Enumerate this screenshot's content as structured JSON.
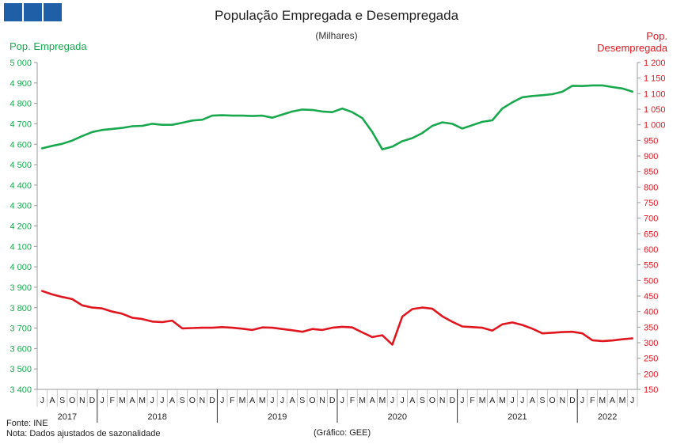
{
  "logo": {
    "squares": 3,
    "color": "#1f5fa8"
  },
  "chart_data": {
    "type": "line",
    "title": "População Empregada e Desempregada",
    "subtitle": "(Milhares)",
    "y_left_label": "Pop. Empregada",
    "y_right_label_line1": "Pop.",
    "y_right_label_line2": "Desempregada",
    "y_left": {
      "min": 3400,
      "max": 5000,
      "step": 100,
      "ticks": [
        "3 400",
        "3 500",
        "3 600",
        "3 700",
        "3 800",
        "3 900",
        "4 000",
        "4 100",
        "4 200",
        "4 300",
        "4 400",
        "4 500",
        "4 600",
        "4 700",
        "4 800",
        "4 900",
        "5 000"
      ]
    },
    "y_right": {
      "min": 150,
      "max": 1200,
      "step": 50,
      "ticks": [
        "150",
        "200",
        "250",
        "300",
        "350",
        "400",
        "450",
        "500",
        "550",
        "600",
        "650",
        "700",
        "750",
        "800",
        "850",
        "900",
        "950",
        "1 000",
        "1 050",
        "1 100",
        "1 150",
        "1 200"
      ]
    },
    "months": [
      "J",
      "A",
      "S",
      "O",
      "N",
      "D",
      "J",
      "F",
      "M",
      "A",
      "M",
      "J",
      "J",
      "A",
      "S",
      "O",
      "N",
      "D",
      "J",
      "F",
      "M",
      "A",
      "M",
      "J",
      "J",
      "A",
      "S",
      "O",
      "N",
      "D",
      "J",
      "F",
      "M",
      "A",
      "M",
      "J",
      "J",
      "A",
      "S",
      "O",
      "N",
      "D",
      "J",
      "F",
      "M",
      "A",
      "M",
      "J",
      "J",
      "A",
      "S",
      "O",
      "N",
      "D",
      "J",
      "F",
      "M",
      "A",
      "M",
      "J"
    ],
    "years": [
      {
        "label": "2017",
        "start": 0,
        "end": 5
      },
      {
        "label": "2018",
        "start": 6,
        "end": 17
      },
      {
        "label": "2019",
        "start": 18,
        "end": 29
      },
      {
        "label": "2020",
        "start": 30,
        "end": 41
      },
      {
        "label": "2021",
        "start": 42,
        "end": 53
      },
      {
        "label": "2022",
        "start": 54,
        "end": 59
      }
    ],
    "series": [
      {
        "name": "Pop. Empregada",
        "axis": "left",
        "color": "#1aa84f",
        "values": [
          4580,
          4592,
          4602,
          4618,
          4640,
          4660,
          4670,
          4675,
          4680,
          4688,
          4690,
          4700,
          4695,
          4695,
          4705,
          4716,
          4720,
          4740,
          4742,
          4740,
          4740,
          4738,
          4740,
          4730,
          4745,
          4760,
          4770,
          4768,
          4760,
          4757,
          4775,
          4757,
          4728,
          4660,
          4575,
          4588,
          4615,
          4630,
          4655,
          4690,
          4707,
          4700,
          4677,
          4693,
          4710,
          4717,
          4775,
          4805,
          4830,
          4836,
          4840,
          4845,
          4857,
          4886,
          4885,
          4888,
          4888,
          4880,
          4873,
          4858
        ]
      },
      {
        "name": "Pop. Desempregada",
        "axis": "right",
        "color": "#e0161f",
        "values": [
          466,
          455,
          447,
          440,
          420,
          413,
          410,
          400,
          393,
          380,
          376,
          368,
          366,
          371,
          346,
          347,
          348,
          348,
          350,
          348,
          345,
          341,
          349,
          348,
          344,
          340,
          335,
          344,
          341,
          348,
          351,
          349,
          333,
          318,
          324,
          294,
          384,
          408,
          413,
          409,
          385,
          367,
          352,
          350,
          348,
          339,
          359,
          365,
          357,
          345,
          330,
          332,
          334,
          335,
          330,
          308,
          305,
          307,
          311,
          314
        ]
      }
    ],
    "grid": false
  },
  "footer": {
    "source": "Fonte: INE",
    "note": "Nota: Dados ajustados de sazonalidade",
    "credit": "(Gráfico: GEE)"
  }
}
